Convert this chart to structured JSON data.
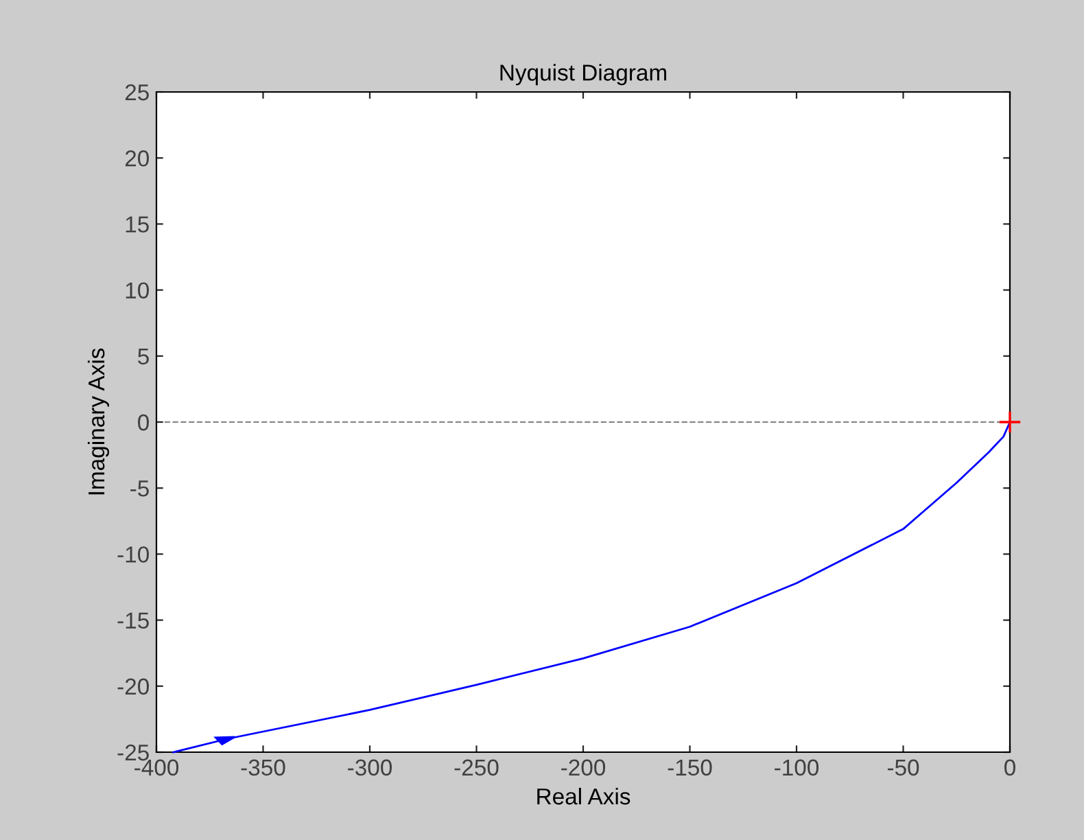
{
  "chart_data": {
    "type": "line",
    "title": "Nyquist Diagram",
    "xlabel": "Real Axis",
    "ylabel": "Imaginary Axis",
    "xlim": [
      -400,
      0
    ],
    "ylim": [
      -25,
      25
    ],
    "xticks": [
      -400,
      -350,
      -300,
      -250,
      -200,
      -150,
      -100,
      -50,
      0
    ],
    "yticks": [
      -25,
      -20,
      -15,
      -10,
      -5,
      0,
      5,
      10,
      15,
      20,
      25
    ],
    "grid": false,
    "legend": false,
    "ref_lines": [
      {
        "axis": "y",
        "value": 0,
        "color": "#808080",
        "line_style": "dashed"
      }
    ],
    "series": [
      {
        "color": "#0000ff",
        "marker": "none",
        "x": [
          -392,
          -367,
          -300,
          -250,
          -200,
          -150,
          -100,
          -50,
          -25,
          -10,
          -3,
          0
        ],
        "values": [
          -25,
          -24,
          -21.8,
          -19.9,
          -17.9,
          -15.5,
          -12.2,
          -8.1,
          -4.6,
          -2.3,
          -1.1,
          0
        ]
      },
      {
        "type": "scatter",
        "color": "#ff0000",
        "marker": "cross",
        "x": [
          0
        ],
        "values": [
          0
        ]
      }
    ]
  }
}
